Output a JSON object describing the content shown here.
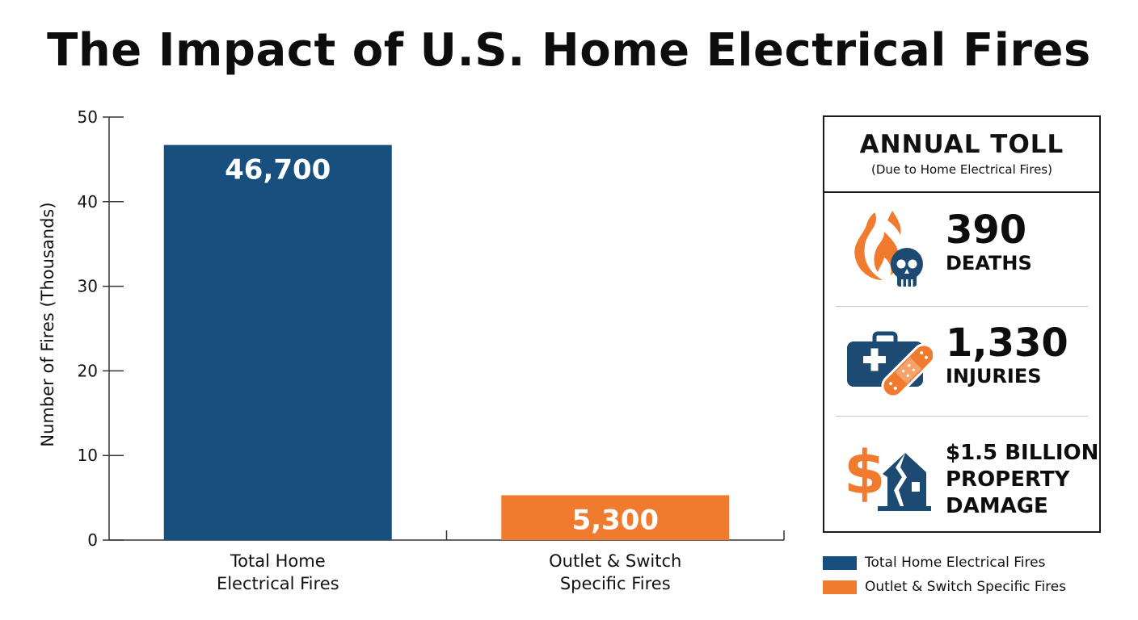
{
  "chart_data": {
    "type": "bar",
    "title": "The Impact of U.S. Home Electrical Fires",
    "ylabel": "Number of Fires (Thousands)",
    "xlabel": "",
    "ylim": [
      0,
      50
    ],
    "yticks": [
      0,
      10,
      20,
      30,
      40,
      50
    ],
    "grid": false,
    "categories": [
      [
        "Total Home",
        "Electrical Fires"
      ],
      [
        "Outlet & Switch",
        "Specific Fires"
      ]
    ],
    "values": [
      46.7,
      5.3
    ],
    "data_labels": [
      "46,700",
      "5,300"
    ],
    "colors": [
      "#17507f",
      "#f07a2d"
    ],
    "legend": {
      "placement": "bottom-right",
      "entries": [
        {
          "label": "Total Home Electrical Fires",
          "color": "#17507f"
        },
        {
          "label": "Outlet & Switch Specific Fires",
          "color": "#f07a2d"
        }
      ]
    }
  },
  "panel": {
    "title": "ANNUAL TOLL",
    "subtitle": "(Due to Home Electrical Fires)",
    "stats": [
      {
        "value": "390",
        "label": "DEATHS",
        "icon": "fire-skull-icon"
      },
      {
        "value": "1,330",
        "label": "INJURIES",
        "icon": "first-aid-bandage-icon"
      },
      {
        "lines": [
          "$1.5 BILLION",
          "PROPERTY",
          "DAMAGE"
        ],
        "icon": "dollar-damaged-house-icon"
      }
    ]
  },
  "colors": {
    "navy": "#17507f",
    "orange": "#f07a2d",
    "dark_icon": "#1d4a73"
  }
}
